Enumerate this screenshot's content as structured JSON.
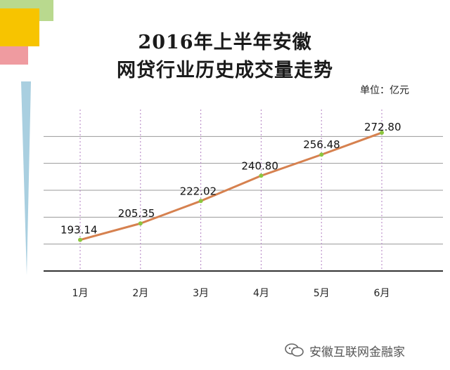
{
  "title_line1": "2016年上半年安徽",
  "title_line2": "网贷行业历史成交量走势",
  "unit_label": "单位：亿元",
  "watermark": {
    "text": "安徽互联网金融家",
    "icon": "wechat-icon"
  },
  "colors": {
    "line": "#d6814f",
    "marker": "#8cc63f",
    "grid": "#9a9a9a",
    "vertical_grid": "#b07ec0",
    "axis": "#333333",
    "side_ribbon": "#a9cfe0"
  },
  "chart_data": {
    "type": "line",
    "title": "2016年上半年安徽 网贷行业历史成交量走势",
    "unit": "单位：亿元",
    "categories": [
      "1月",
      "2月",
      "3月",
      "4月",
      "5月",
      "6月"
    ],
    "series": [
      {
        "values": [
          193.14,
          205.35,
          222.02,
          240.8,
          256.48,
          272.8
        ]
      }
    ],
    "data_labels": [
      "193.14",
      "205.35",
      "222.02",
      "240.80",
      "256.48",
      "272.80"
    ],
    "ylim": [
      170,
      290
    ],
    "grid": true,
    "xlabel": "",
    "ylabel": ""
  }
}
